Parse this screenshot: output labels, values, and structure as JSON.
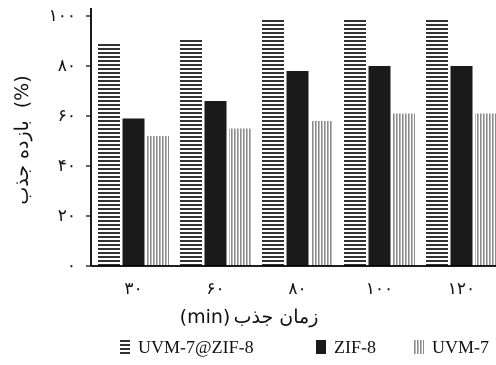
{
  "chart_data": {
    "type": "bar",
    "xlabel_main": "زمان جذب",
    "xlabel_unit": "(min)",
    "ylabel_main": "بازده جذب",
    "ylabel_unit": "(%)",
    "categories": [
      "۳۰",
      "۶۰",
      "۸۰",
      "۱۰۰",
      "۱۲۰"
    ],
    "x": [
      30,
      60,
      80,
      100,
      120
    ],
    "y_ticks": [
      "۰",
      "۲۰",
      "۴۰",
      "۶۰",
      "۸۰",
      "۱۰۰"
    ],
    "ylim": [
      0,
      100
    ],
    "grid": false,
    "legend_position": "bottom",
    "series": [
      {
        "name": "UVM-7@ZIF-8",
        "pattern": "horizontal-lines",
        "color": "#333333",
        "values": [
          89,
          91,
          99,
          99,
          99
        ]
      },
      {
        "name": "ZIF-8",
        "pattern": "solid",
        "color": "#1a1a1a",
        "values": [
          59,
          66,
          78,
          80,
          80
        ]
      },
      {
        "name": "UVM-7",
        "pattern": "vertical-lines",
        "color": "#8c8c8c",
        "values": [
          52,
          55,
          58,
          61,
          61
        ]
      }
    ]
  }
}
